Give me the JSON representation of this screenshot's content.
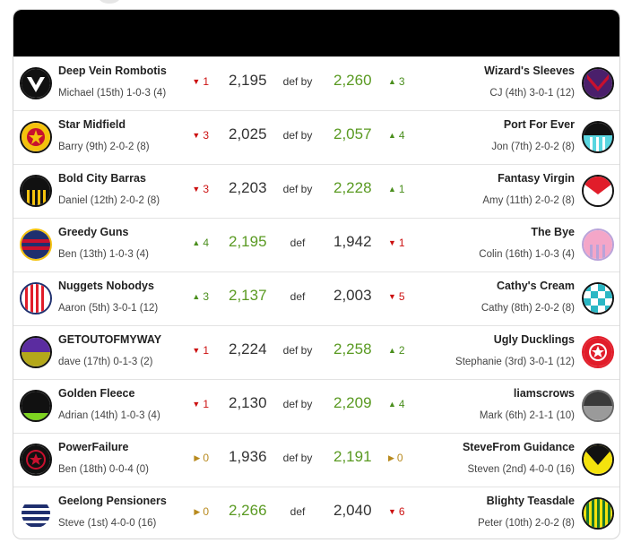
{
  "matches": [
    {
      "home": {
        "name": "Deep Vein Rombotis",
        "record": "Michael (15th) 1-0-3 (4)",
        "score": "2,195",
        "change": "1",
        "dir": "down",
        "icon": "black-white-v-guernsey-icon"
      },
      "result": "def by",
      "away": {
        "name": "Wizard's Sleeves",
        "record": "CJ (4th) 3-0-1 (12)",
        "score": "2,260",
        "change": "3",
        "dir": "up",
        "icon": "purple-red-chevron-guernsey-icon"
      },
      "winner": "away"
    },
    {
      "home": {
        "name": "Star Midfield",
        "record": "Barry (9th) 2-0-2 (8)",
        "score": "2,025",
        "change": "3",
        "dir": "down",
        "icon": "yellow-red-star-guernsey-icon"
      },
      "result": "def by",
      "away": {
        "name": "Port For Ever",
        "record": "Jon (7th) 2-0-2 (8)",
        "score": "2,057",
        "change": "4",
        "dir": "up",
        "icon": "black-teal-stripes-guernsey-icon"
      },
      "winner": "away"
    },
    {
      "home": {
        "name": "Bold City Barras",
        "record": "Daniel (12th) 2-0-2 (8)",
        "score": "2,203",
        "change": "3",
        "dir": "down",
        "icon": "black-yellow-stripes-guernsey-icon"
      },
      "result": "def by",
      "away": {
        "name": "Fantasy Virgin",
        "record": "Amy (11th) 2-0-2 (8)",
        "score": "2,228",
        "change": "1",
        "dir": "up",
        "icon": "red-white-sash-guernsey-icon"
      },
      "winner": "away"
    },
    {
      "home": {
        "name": "Greedy Guns",
        "record": "Ben (13th) 1-0-3 (4)",
        "score": "2,195",
        "change": "4",
        "dir": "up",
        "icon": "navy-red-hoops-guernsey-icon"
      },
      "result": "def",
      "away": {
        "name": "The Bye",
        "record": "Colin (16th) 1-0-3 (4)",
        "score": "1,942",
        "change": "1",
        "dir": "down",
        "icon": "pink-lilac-stripes-guernsey-icon"
      },
      "winner": "home"
    },
    {
      "home": {
        "name": "Nuggets Nobodys",
        "record": "Aaron (5th) 3-0-1 (12)",
        "score": "2,137",
        "change": "3",
        "dir": "up",
        "icon": "red-white-stripes-guernsey-icon"
      },
      "result": "def",
      "away": {
        "name": "Cathy's Cream",
        "record": "Cathy (8th) 2-0-2 (8)",
        "score": "2,003",
        "change": "5",
        "dir": "down",
        "icon": "teal-white-check-guernsey-icon"
      },
      "winner": "home"
    },
    {
      "home": {
        "name": "GETOUTOFMYWAY",
        "record": "dave (17th) 0-1-3 (2)",
        "score": "2,224",
        "change": "1",
        "dir": "down",
        "icon": "purple-olive-guernsey-icon"
      },
      "result": "def by",
      "away": {
        "name": "Ugly Ducklings",
        "record": "Stephanie (3rd) 3-0-1 (12)",
        "score": "2,258",
        "change": "2",
        "dir": "up",
        "icon": "red-star-guernsey-icon"
      },
      "winner": "away"
    },
    {
      "home": {
        "name": "Golden Fleece",
        "record": "Adrian (14th) 1-0-3 (4)",
        "score": "2,130",
        "change": "1",
        "dir": "down",
        "icon": "black-green-guernsey-icon"
      },
      "result": "def by",
      "away": {
        "name": "liamscrows",
        "record": "Mark (6th) 2-1-1 (10)",
        "score": "2,209",
        "change": "4",
        "dir": "up",
        "icon": "grey-guernsey-icon"
      },
      "winner": "away"
    },
    {
      "home": {
        "name": "PowerFailure",
        "record": "Ben (18th) 0-0-4 (0)",
        "score": "1,936",
        "change": "0",
        "dir": "same",
        "icon": "black-red-star-guernsey-icon"
      },
      "result": "def by",
      "away": {
        "name": "SteveFrom Guidance",
        "record": "Steven (2nd) 4-0-0 (16)",
        "score": "2,191",
        "change": "0",
        "dir": "same",
        "icon": "black-yellow-v-guernsey-icon"
      },
      "winner": "away"
    },
    {
      "home": {
        "name": "Geelong Pensioners",
        "record": "Steve (1st) 4-0-0 (16)",
        "score": "2,266",
        "change": "0",
        "dir": "same",
        "icon": "navy-white-hoops-guernsey-icon"
      },
      "result": "def",
      "away": {
        "name": "Blighty Teasdale",
        "record": "Peter (10th) 2-0-2 (8)",
        "score": "2,040",
        "change": "6",
        "dir": "down",
        "icon": "green-gold-stripes-guernsey-icon"
      },
      "winner": "home"
    }
  ],
  "colors": {
    "up": "#4b8f1e",
    "down": "#cc1111",
    "same": "#b88a1e",
    "win_score": "#5a9a22",
    "header": "#000000"
  }
}
